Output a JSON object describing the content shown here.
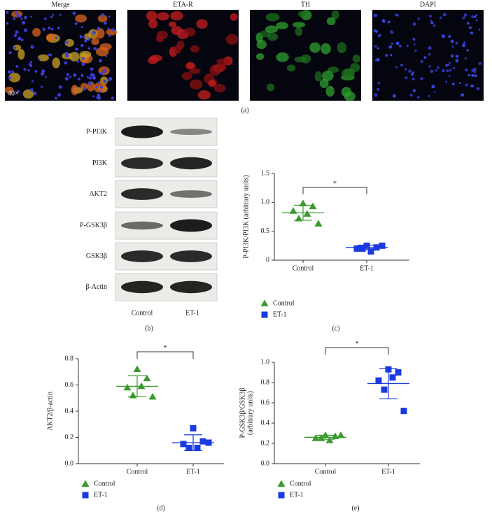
{
  "images": {
    "labels": [
      "Merge",
      "ETA-R",
      "TH",
      "DAPI"
    ],
    "magnification": "40×",
    "panel": "(a)"
  },
  "blot": {
    "rows": [
      "P-PI3K",
      "PI3K",
      "AKT2",
      "P-GSK3β",
      "GSK3β",
      "β-Actin"
    ],
    "lanes": [
      "Control",
      "ET-1"
    ],
    "panel": "(b)"
  },
  "chart_data": [
    {
      "type": "scatter",
      "panel": "(c)",
      "ylabel": [
        "P-PI3K/PI3K (arbitrary units)"
      ],
      "categories": [
        "Control",
        "ET-1"
      ],
      "annotation": "*",
      "ylim": [
        0,
        1.5
      ],
      "yticks": [
        0,
        0.5,
        {
          "value": 1.0,
          "label": "1.0"
        },
        1.5
      ],
      "series": [
        {
          "name": "Control",
          "color": "#3a9a2e",
          "marker": "triangle",
          "values": [
            0.98,
            0.93,
            0.85,
            0.8,
            0.72,
            0.63
          ],
          "mean": 0.82,
          "sd": 0.13
        },
        {
          "name": "ET-1",
          "color": "#1a3adf",
          "marker": "square",
          "values": [
            0.25,
            0.22,
            0.2,
            0.15,
            0.2,
            0.25
          ],
          "mean": 0.22,
          "sd": 0.04
        }
      ]
    },
    {
      "type": "scatter",
      "panel": "(d)",
      "ylabel": [
        "AKT2/β-actin"
      ],
      "categories": [
        "Control",
        "ET-1"
      ],
      "annotation": "*",
      "ylim": [
        0,
        0.8
      ],
      "yticks": [
        {
          "value": 0,
          "label": "0.0"
        },
        0.2,
        0.4,
        0.6,
        0.8
      ],
      "series": [
        {
          "name": "Control",
          "color": "#3a9a2e",
          "marker": "triangle",
          "values": [
            0.72,
            0.65,
            0.58,
            0.59,
            0.52,
            0.51
          ],
          "mean": 0.59,
          "sd": 0.08
        },
        {
          "name": "ET-1",
          "color": "#1a3adf",
          "marker": "square",
          "values": [
            0.27,
            0.17,
            0.15,
            0.12,
            0.12,
            0.16
          ],
          "mean": 0.16,
          "sd": 0.06
        }
      ]
    },
    {
      "type": "scatter",
      "panel": "(e)",
      "ylabel": [
        "P-GSK3β/GSK3β",
        "(arbitrary units)"
      ],
      "categories": [
        "Control",
        "ET-1"
      ],
      "annotation": "*",
      "ylim": [
        0,
        1.0
      ],
      "yticks": [
        {
          "value": 0,
          "label": "0.0"
        },
        0.2,
        0.4,
        0.6,
        0.8,
        {
          "value": 1.0,
          "label": "1.0"
        }
      ],
      "series": [
        {
          "name": "Control",
          "color": "#3a9a2e",
          "marker": "triangle",
          "values": [
            0.28,
            0.27,
            0.25,
            0.23,
            0.25,
            0.28
          ],
          "mean": 0.26,
          "sd": 0.02
        },
        {
          "name": "ET-1",
          "color": "#1a3adf",
          "marker": "square",
          "values": [
            0.93,
            0.9,
            0.82,
            0.85,
            0.73,
            0.52
          ],
          "mean": 0.79,
          "sd": 0.15
        }
      ]
    }
  ]
}
